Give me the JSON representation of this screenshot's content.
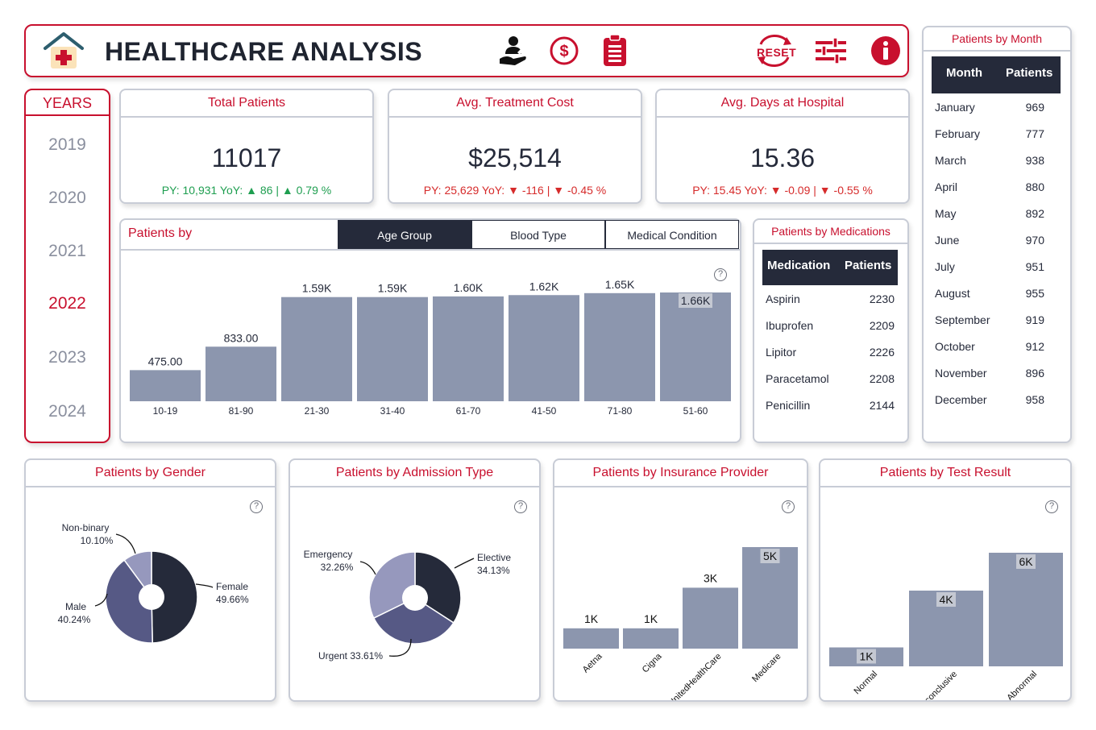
{
  "header": {
    "title": "HEALTHCARE ANALYSIS",
    "reset_label": "RESET"
  },
  "years": {
    "title": "YEARS",
    "items": [
      "2019",
      "2020",
      "2021",
      "2022",
      "2023",
      "2024"
    ],
    "selected": "2022"
  },
  "kpis": [
    {
      "title": "Total Patients",
      "value": "11017",
      "py": "PY: 10,931 YoY: ▲ 86 | ▲ 0.79 %",
      "trend": "up"
    },
    {
      "title": "Avg. Treatment Cost",
      "value": "$25,514",
      "py": "PY: 25,629 YoY: ▼ -116 | ▼ -0.45 %",
      "trend": "down"
    },
    {
      "title": "Avg. Days at Hospital",
      "value": "15.36",
      "py": "PY: 15.45 YoY: ▼ -0.09 | ▼ -0.55 %",
      "trend": "down"
    }
  ],
  "patients_by": {
    "title": "Patients by",
    "tabs": [
      "Age Group",
      "Blood Type",
      "Medical Condition"
    ],
    "active_tab": "Age Group"
  },
  "medications": {
    "title": "Patients by Medications",
    "columns": [
      "Medication",
      "Patients"
    ],
    "rows": [
      [
        "Aspirin",
        "2230"
      ],
      [
        "Ibuprofen",
        "2209"
      ],
      [
        "Lipitor",
        "2226"
      ],
      [
        "Paracetamol",
        "2208"
      ],
      [
        "Penicillin",
        "2144"
      ]
    ]
  },
  "months": {
    "title": "Patients by Month",
    "columns": [
      "Month",
      "Patients"
    ],
    "rows": [
      [
        "January",
        "969"
      ],
      [
        "February",
        "777"
      ],
      [
        "March",
        "938"
      ],
      [
        "April",
        "880"
      ],
      [
        "May",
        "892"
      ],
      [
        "June",
        "970"
      ],
      [
        "July",
        "951"
      ],
      [
        "August",
        "955"
      ],
      [
        "September",
        "919"
      ],
      [
        "October",
        "912"
      ],
      [
        "November",
        "896"
      ],
      [
        "December",
        "958"
      ]
    ]
  },
  "colors": {
    "accent": "#c8102e",
    "bar": "#8c96ae",
    "dark": "#252a3a",
    "mid": "#565985",
    "light": "#9698bd",
    "up": "#1e9e50",
    "down": "#d62b2b"
  },
  "chart_data": [
    {
      "type": "bar",
      "categories": [
        "10-19",
        "81-90",
        "21-30",
        "31-40",
        "61-70",
        "41-50",
        "71-80",
        "51-60"
      ],
      "values": [
        475,
        833,
        1590,
        1590,
        1600,
        1620,
        1650,
        1660
      ],
      "labels": [
        "475.00",
        "833.00",
        "1.59K",
        "1.59K",
        "1.60K",
        "1.62K",
        "1.65K",
        "1.66K"
      ],
      "ylim": [
        0,
        1660
      ]
    },
    {
      "type": "pie",
      "title": "Patients by Gender",
      "slices": [
        {
          "name": "Female",
          "value": 49.66,
          "label": "49.66%",
          "color": "#252a3a"
        },
        {
          "name": "Male",
          "value": 40.24,
          "label": "40.24%",
          "color": "#565985"
        },
        {
          "name": "Non-binary",
          "value": 10.1,
          "label": "10.10%",
          "color": "#9698bd"
        }
      ]
    },
    {
      "type": "pie",
      "title": "Patients by Admission Type",
      "slices": [
        {
          "name": "Elective",
          "value": 34.13,
          "label": "34.13%",
          "color": "#252a3a"
        },
        {
          "name": "Urgent",
          "value": 33.61,
          "label": "33.61%",
          "color": "#565985"
        },
        {
          "name": "Emergency",
          "value": 32.26,
          "label": "32.26%",
          "color": "#9698bd"
        }
      ]
    },
    {
      "type": "bar",
      "title": "Patients by Insurance Provider",
      "categories": [
        "Aetna",
        "Cigna",
        "UnitedHealthCare",
        "Medicare"
      ],
      "values": [
        1000,
        1000,
        3000,
        5000
      ],
      "labels": [
        "1K",
        "1K",
        "3K",
        "5K"
      ],
      "ylim": [
        0,
        5000
      ]
    },
    {
      "type": "bar",
      "title": "Patients by Test Result",
      "categories": [
        "Normal",
        "Inconclusive",
        "Abnormal"
      ],
      "values": [
        1000,
        4000,
        6000
      ],
      "labels": [
        "1K",
        "4K",
        "6K"
      ],
      "ylim": [
        0,
        6000
      ]
    }
  ]
}
